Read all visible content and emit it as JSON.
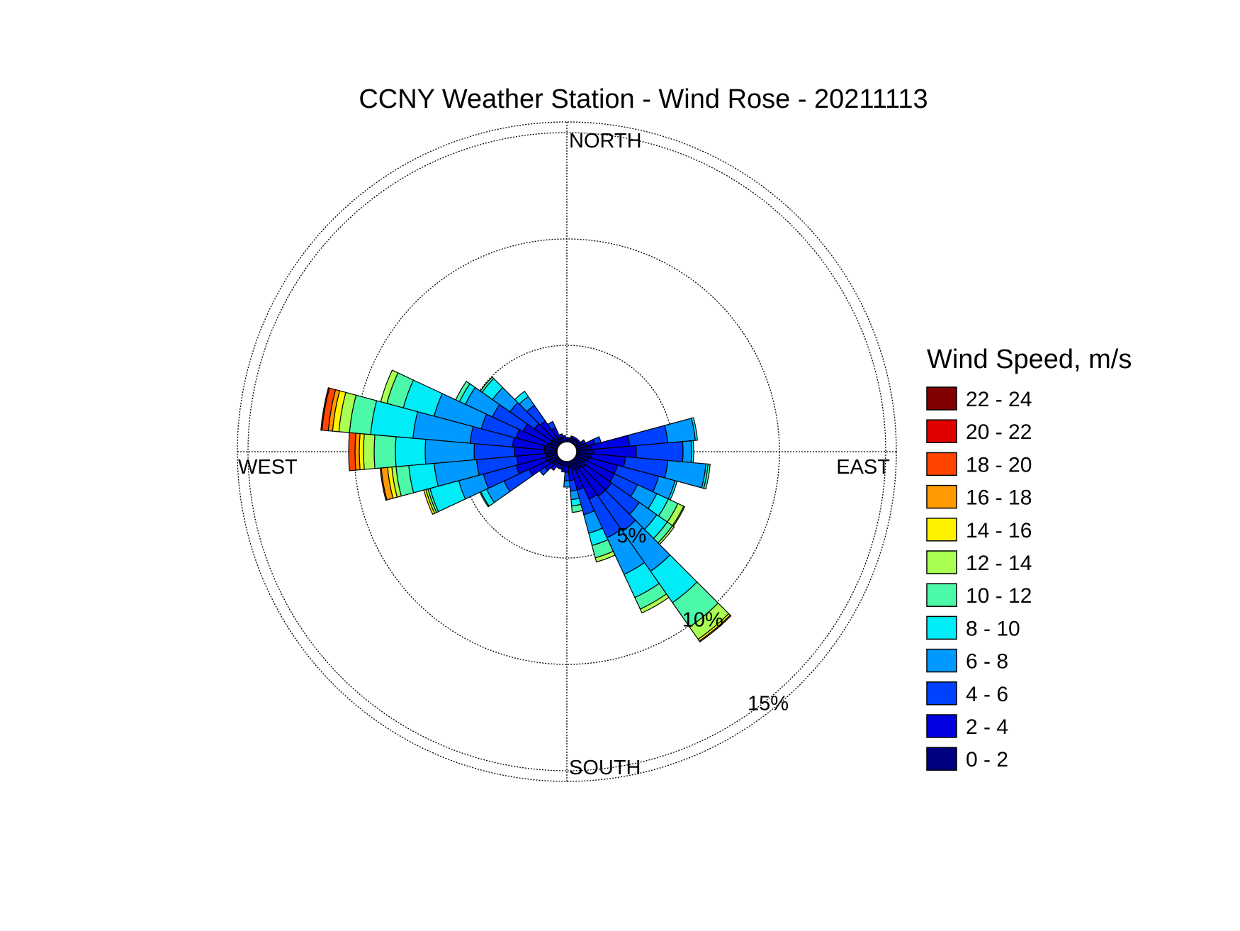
{
  "chart_data": {
    "type": "wind-rose",
    "title": "CCNY Weather Station - Wind Rose - 20211113",
    "direction_labels": {
      "north": "NORTH",
      "south": "SOUTH",
      "east": "EAST",
      "west": "WEST"
    },
    "ring_values": [
      5,
      10,
      15
    ],
    "ring_labels": [
      "5%",
      "10%",
      "15%"
    ],
    "rlim": [
      0,
      15.5
    ],
    "legend_title": "Wind Speed, m/s",
    "speed_bins": [
      {
        "label": "0 - 2",
        "color": "#00007f"
      },
      {
        "label": "2 - 4",
        "color": "#0000e0"
      },
      {
        "label": "4 - 6",
        "color": "#0040ff"
      },
      {
        "label": "6 - 8",
        "color": "#0099ff"
      },
      {
        "label": "8 - 10",
        "color": "#00ecf6"
      },
      {
        "label": "10 - 12",
        "color": "#4cf9a9"
      },
      {
        "label": "12 - 14",
        "color": "#a9ff52"
      },
      {
        "label": "14 - 16",
        "color": "#fff200"
      },
      {
        "label": "16 - 18",
        "color": "#ff9a00"
      },
      {
        "label": "18 - 20",
        "color": "#ff4500"
      },
      {
        "label": "20 - 22",
        "color": "#e00000"
      },
      {
        "label": "22 - 24",
        "color": "#800000"
      }
    ],
    "sector_width_deg": 10,
    "sectors": [
      {
        "direction_deg": 0,
        "values": [
          0.1,
          0.1
        ]
      },
      {
        "direction_deg": 10,
        "values": [
          0.1,
          0.1
        ]
      },
      {
        "direction_deg": 20,
        "values": [
          0.2,
          0.1
        ]
      },
      {
        "direction_deg": 30,
        "values": [
          0.2,
          0.1
        ]
      },
      {
        "direction_deg": 40,
        "values": [
          0.2,
          0.1
        ]
      },
      {
        "direction_deg": 50,
        "values": [
          0.2,
          0.1
        ]
      },
      {
        "direction_deg": 60,
        "values": [
          0.3,
          0.2
        ]
      },
      {
        "direction_deg": 70,
        "values": [
          0.5,
          0.4,
          0.3
        ]
      },
      {
        "direction_deg": 80,
        "values": [
          0.7,
          1.8,
          1.8,
          1.3,
          0.1
        ]
      },
      {
        "direction_deg": 90,
        "values": [
          0.8,
          2.0,
          2.2,
          0.4,
          0.1
        ]
      },
      {
        "direction_deg": 100,
        "values": [
          0.7,
          1.6,
          2.0,
          1.8,
          0.1,
          0.1
        ]
      },
      {
        "direction_deg": 110,
        "values": [
          0.6,
          1.4,
          2.0,
          0.8,
          0.1
        ]
      },
      {
        "direction_deg": 120,
        "values": [
          0.5,
          1.5,
          1.2,
          1.0,
          0.6,
          0.5,
          0.3,
          0.05
        ]
      },
      {
        "direction_deg": 130,
        "values": [
          0.6,
          1.5,
          1.6,
          1.0,
          0.6,
          0.3,
          0.1
        ]
      },
      {
        "direction_deg": 140,
        "values": [
          0.5,
          1.6,
          2.0,
          2.3,
          1.8,
          1.4,
          0.7,
          0.1,
          0.05
        ]
      },
      {
        "direction_deg": 150,
        "values": [
          0.5,
          1.5,
          2.0,
          1.9,
          1.2,
          0.6,
          0.2
        ]
      },
      {
        "direction_deg": 160,
        "values": [
          0.4,
          1.0,
          1.2,
          0.9,
          0.6,
          0.6,
          0.2
        ]
      },
      {
        "direction_deg": 170,
        "values": [
          0.3,
          0.6,
          0.5,
          0.4,
          0.3,
          0.3
        ]
      },
      {
        "direction_deg": 180,
        "values": [
          0.2,
          0.3,
          0.4,
          0.3
        ]
      },
      {
        "direction_deg": 190,
        "values": [
          0.2,
          0.3
        ]
      },
      {
        "direction_deg": 200,
        "values": [
          0.2,
          0.2
        ]
      },
      {
        "direction_deg": 210,
        "values": [
          0.2,
          0.2
        ]
      },
      {
        "direction_deg": 220,
        "values": [
          0.3,
          0.3
        ]
      },
      {
        "direction_deg": 230,
        "values": [
          0.4,
          0.4,
          0.3
        ]
      },
      {
        "direction_deg": 240,
        "values": [
          0.5,
          1.0,
          1.3,
          0.9,
          0.3,
          0.05
        ]
      },
      {
        "direction_deg": 250,
        "values": [
          0.6,
          1.4,
          1.6,
          1.2,
          1.4,
          0.1,
          0.1,
          0.1
        ]
      },
      {
        "direction_deg": 260,
        "values": [
          0.5,
          1.4,
          1.9,
          2.0,
          1.2,
          0.6,
          0.2,
          0.2,
          0.3,
          0.05
        ]
      },
      {
        "direction_deg": 270,
        "values": [
          0.6,
          1.4,
          1.9,
          2.3,
          1.4,
          1.0,
          0.5,
          0.2,
          0.2,
          0.3
        ]
      },
      {
        "direction_deg": 280,
        "values": [
          0.6,
          1.5,
          2.0,
          2.7,
          2.0,
          1.0,
          0.5,
          0.3,
          0.2,
          0.3,
          0.05
        ]
      },
      {
        "direction_deg": 290,
        "values": [
          0.5,
          1.5,
          1.7,
          2.3,
          1.5,
          0.8,
          0.3
        ]
      },
      {
        "direction_deg": 300,
        "values": [
          0.4,
          1.4,
          1.6,
          1.4,
          0.3,
          0.2
        ]
      },
      {
        "direction_deg": 310,
        "values": [
          0.4,
          1.0,
          1.4,
          1.0,
          0.6,
          0.1
        ]
      },
      {
        "direction_deg": 320,
        "values": [
          0.3,
          1.0,
          0.9,
          0.5,
          0.3
        ]
      },
      {
        "direction_deg": 330,
        "values": [
          0.3,
          0.5,
          0.3
        ]
      },
      {
        "direction_deg": 340,
        "values": [
          0.2,
          0.2
        ]
      },
      {
        "direction_deg": 350,
        "values": [
          0.2,
          0.1
        ]
      }
    ]
  }
}
